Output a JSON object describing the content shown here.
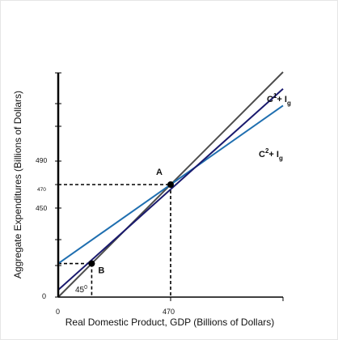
{
  "chart_data": {
    "type": "line",
    "xlabel": "Real Domestic Product, GDP (Billions of Dollars)",
    "ylabel": "Aggregate Expenditures  (Billions of Dollars)",
    "x_ticks": [
      "0",
      "470"
    ],
    "y_ticks": [
      "0",
      "450",
      "470",
      "490"
    ],
    "series": [
      {
        "id": "line45",
        "label": "45",
        "label_sup": "0",
        "color": "#4d4d4d",
        "x": [
          0,
          470
        ],
        "y": [
          0,
          470
        ]
      },
      {
        "id": "c1",
        "label": "C",
        "label_sup": "1",
        "label_tail": "+ I",
        "label_sub": "g",
        "color": "#1f6fb0",
        "x": [
          0,
          470
        ],
        "y": [
          140,
          470
        ]
      },
      {
        "id": "c2",
        "label": "C",
        "label_sup": "2",
        "label_tail": "+ I",
        "label_sub": "g",
        "color": "#1a1a6e",
        "x": [
          0,
          470
        ],
        "y": [
          30,
          450
        ]
      }
    ],
    "points": [
      {
        "label": "A",
        "x": 470,
        "y": 470
      },
      {
        "label": "B",
        "x": 140,
        "y": 140
      }
    ],
    "dashed_guides": true
  }
}
